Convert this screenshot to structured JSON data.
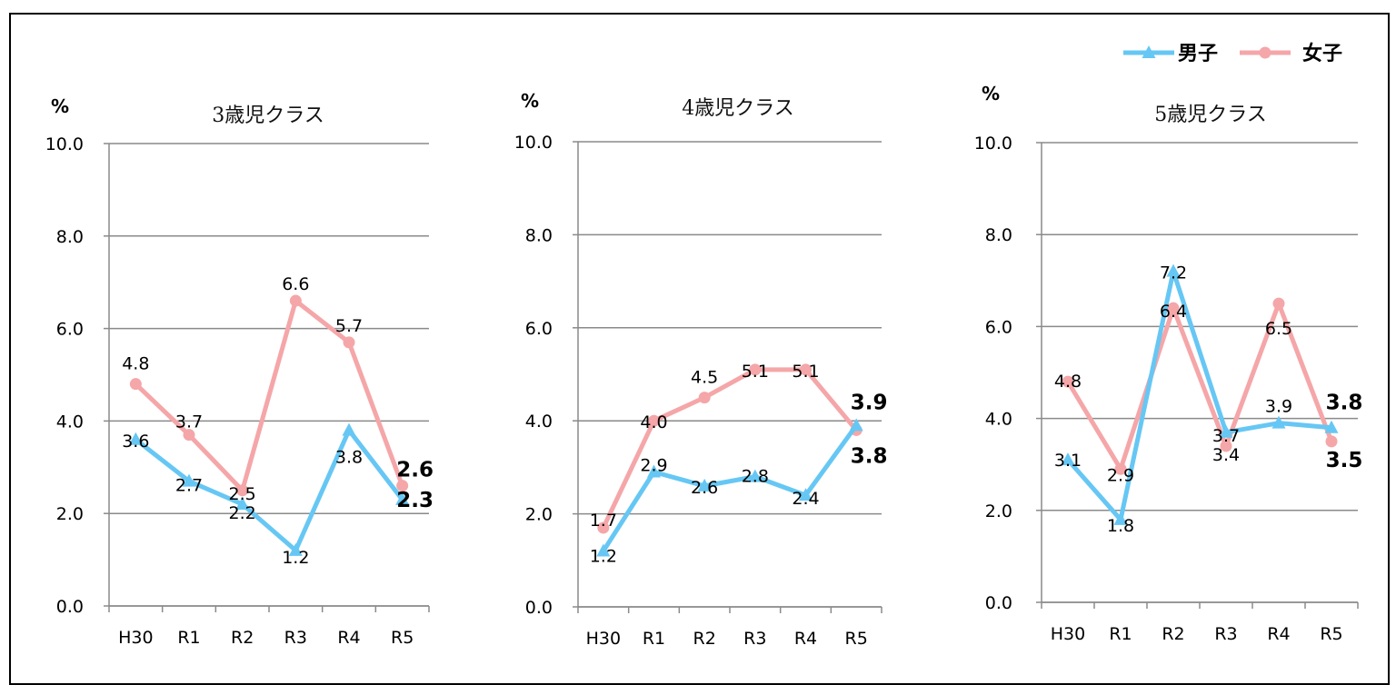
{
  "legend": [
    {
      "name": "男子",
      "color": "#66c7f4",
      "marker": "triangle"
    },
    {
      "name": "女子",
      "color": "#f5a6a8",
      "marker": "circle"
    }
  ],
  "chart_data": [
    {
      "type": "line",
      "title": "3歳児クラス",
      "ylabel": "%",
      "ylim": [
        0,
        10
      ],
      "yticks": [
        "0.0",
        "2.0",
        "4.0",
        "6.0",
        "8.0",
        "10.0"
      ],
      "categories": [
        "H30",
        "R1",
        "R2",
        "R3",
        "R4",
        "R5"
      ],
      "grid": true,
      "series": [
        {
          "name": "男子",
          "values": [
            3.6,
            2.7,
            2.2,
            1.2,
            3.8,
            2.3
          ],
          "labels": [
            "3.6",
            "2.7",
            "2.2",
            "1.2",
            "3.8",
            "2.3"
          ]
        },
        {
          "name": "女子",
          "values": [
            4.8,
            3.7,
            2.5,
            6.6,
            5.7,
            2.6
          ],
          "labels": [
            "4.8",
            "3.7",
            "2.5",
            "6.6",
            "5.7",
            "2.6"
          ]
        }
      ]
    },
    {
      "type": "line",
      "title": "4歳児クラス",
      "ylabel": "%",
      "ylim": [
        0,
        10
      ],
      "yticks": [
        "0.0",
        "2.0",
        "4.0",
        "6.0",
        "8.0",
        "10.0"
      ],
      "categories": [
        "H30",
        "R1",
        "R2",
        "R3",
        "R4",
        "R5"
      ],
      "grid": true,
      "series": [
        {
          "name": "男子",
          "values": [
            1.2,
            2.9,
            2.6,
            2.8,
            2.4,
            3.9
          ],
          "labels": [
            "1.2",
            "2.9",
            "2.6",
            "2.8",
            "2.4",
            "3.9"
          ]
        },
        {
          "name": "女子",
          "values": [
            1.7,
            4.0,
            4.5,
            5.1,
            5.1,
            3.8
          ],
          "labels": [
            "1.7",
            "4.0",
            "4.5",
            "5.1",
            "5.1",
            "3.8"
          ]
        }
      ]
    },
    {
      "type": "line",
      "title": "5歳児クラス",
      "ylabel": "%",
      "ylim": [
        0,
        10
      ],
      "yticks": [
        "0.0",
        "2.0",
        "4.0",
        "6.0",
        "8.0",
        "10.0"
      ],
      "categories": [
        "H30",
        "R1",
        "R2",
        "R3",
        "R4",
        "R5"
      ],
      "grid": true,
      "series": [
        {
          "name": "男子",
          "values": [
            3.1,
            1.8,
            7.2,
            3.7,
            3.9,
            3.8
          ],
          "labels": [
            "3.1",
            "1.8",
            "7.2",
            "3.7",
            "3.9",
            "3.8"
          ]
        },
        {
          "name": "女子",
          "values": [
            4.8,
            2.9,
            6.4,
            3.4,
            6.5,
            3.5
          ],
          "labels": [
            "4.8",
            "2.9",
            "6.4",
            "3.4",
            "6.5",
            "3.5"
          ]
        }
      ]
    }
  ]
}
